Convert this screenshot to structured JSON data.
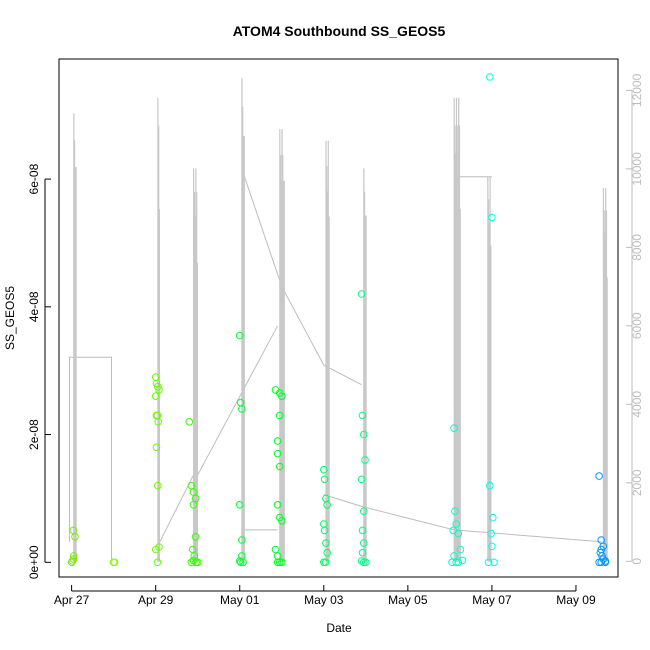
{
  "chart_data": {
    "type": "scatter",
    "title": "ATOM4 Southbound SS_GEOS5",
    "xlabel": "Date",
    "ylabel": "SS_GEOS5",
    "x_ticks": [
      {
        "label": "Apr 27",
        "day": 27
      },
      {
        "label": "Apr 29",
        "day": 29
      },
      {
        "label": "May 01",
        "day": 31
      },
      {
        "label": "May 03",
        "day": 33
      },
      {
        "label": "May 05",
        "day": 35
      },
      {
        "label": "May 07",
        "day": 37
      },
      {
        "label": "May 09",
        "day": 39
      }
    ],
    "xlim_days": [
      26.7,
      40.0
    ],
    "y_ticks": [
      {
        "label": "0e+00",
        "value": 0
      },
      {
        "label": "2e-08",
        "value": 2e-08
      },
      {
        "label": "4e-08",
        "value": 4e-08
      },
      {
        "label": "6e-08",
        "value": 6e-08
      }
    ],
    "ylim": [
      -2.3e-09,
      7.88e-08
    ],
    "right_axis": {
      "ticks": [
        0,
        2000,
        4000,
        6000,
        8000,
        10000,
        12000
      ],
      "ylim": [
        -400,
        12800
      ],
      "color": "#bdbdbd"
    },
    "altitude_profiles": [
      {
        "day": 27.05,
        "max": 11400,
        "spikes": 4
      },
      {
        "day": 29.05,
        "max": 11800,
        "spikes": 3
      },
      {
        "day": 29.9,
        "max": 10000,
        "spikes": 6
      },
      {
        "day": 31.05,
        "max": 12300,
        "spikes": 4
      },
      {
        "day": 31.95,
        "max": 11000,
        "spikes": 7
      },
      {
        "day": 33.05,
        "max": 10700,
        "spikes": 5
      },
      {
        "day": 33.95,
        "max": 10000,
        "spikes": 4
      },
      {
        "day": 36.1,
        "max": 11800,
        "spikes": 9
      },
      {
        "day": 36.9,
        "max": 9800,
        "spikes": 5
      },
      {
        "day": 39.65,
        "max": 9500,
        "spikes": 6
      }
    ],
    "altitude_transits": [
      [
        [
          26.95,
          500
        ],
        [
          26.95,
          5200
        ],
        [
          27.95,
          5200
        ],
        [
          27.95,
          0
        ]
      ],
      [
        [
          29.1,
          500
        ],
        [
          29.9,
          2200
        ]
      ],
      [
        [
          29.9,
          2000
        ],
        [
          31.9,
          6000
        ]
      ],
      [
        [
          31.05,
          10000
        ],
        [
          32.0,
          7000
        ],
        [
          33.0,
          5000
        ],
        [
          33.9,
          4500
        ]
      ],
      [
        [
          33.0,
          1700
        ],
        [
          33.9,
          1400
        ],
        [
          36.1,
          800
        ],
        [
          39.6,
          500
        ]
      ],
      [
        [
          36.1,
          9800
        ],
        [
          37.0,
          9800
        ]
      ],
      [
        [
          31.05,
          800
        ],
        [
          31.9,
          800
        ]
      ]
    ],
    "series": [
      {
        "color": "#76ee00",
        "x": [
          27.0,
          27.02,
          27.05,
          27.05,
          27.08,
          27.04
        ],
        "y": [
          0.0,
          2e-10,
          5e-10,
          1e-09,
          4e-09,
          5e-09
        ]
      },
      {
        "color": "#7fff00",
        "x": [
          28.0,
          28.02
        ],
        "y": [
          0.0,
          0.0
        ]
      },
      {
        "color": "#66ff00",
        "x": [
          29.0,
          29.02,
          29.05,
          29.08,
          29.0,
          29.02,
          29.04,
          29.06,
          29.02,
          29.05,
          29.08,
          29.0,
          29.04
        ],
        "y": [
          2.9e-08,
          2.8e-08,
          2.75e-08,
          2.7e-08,
          2.6e-08,
          2.3e-08,
          2.3e-08,
          2.2e-08,
          1.8e-08,
          1.2e-08,
          2.4e-09,
          2e-09,
          0.0
        ]
      },
      {
        "color": "#33ff00",
        "x": [
          29.8,
          29.85,
          29.9,
          29.95,
          29.9,
          29.95,
          29.88,
          29.92,
          29.96,
          30.0,
          29.85,
          29.9
        ],
        "y": [
          2.2e-08,
          1.2e-08,
          1.1e-08,
          1e-08,
          9e-09,
          4e-09,
          2e-09,
          1e-09,
          0.0,
          0.0,
          0.0,
          3e-10
        ]
      },
      {
        "color": "#00ff33",
        "x": [
          31.0,
          31.02,
          31.05,
          31.0,
          31.05,
          31.05,
          31.02,
          31.08,
          31.0
        ],
        "y": [
          3.55e-08,
          2.5e-08,
          2.4e-08,
          9e-09,
          3.5e-09,
          1e-09,
          0.0,
          0.0,
          2e-10
        ]
      },
      {
        "color": "#00ff22",
        "x": [
          31.85,
          31.95,
          32.0,
          31.95,
          31.9,
          31.9,
          31.95,
          31.9,
          31.95,
          32.0,
          31.85,
          31.9,
          31.95,
          31.9,
          32.0
        ],
        "y": [
          2.7e-08,
          2.65e-08,
          2.6e-08,
          2.3e-08,
          1.9e-08,
          1.7e-08,
          1.5e-08,
          9e-09,
          7e-09,
          6.5e-09,
          2e-09,
          1e-09,
          0.0,
          0.0,
          0.0
        ]
      },
      {
        "color": "#00ff66",
        "x": [
          33.0,
          33.02,
          33.05,
          33.08,
          33.0,
          33.02,
          33.05,
          33.08,
          33.04,
          33.0
        ],
        "y": [
          1.45e-08,
          1.3e-08,
          1e-08,
          9e-09,
          6e-09,
          5e-09,
          3e-09,
          1.5e-09,
          0.0,
          0.0
        ]
      },
      {
        "color": "#00ff88",
        "x": [
          33.9,
          33.92,
          33.95,
          33.98,
          33.9,
          33.95,
          33.92,
          33.95,
          33.92,
          33.95,
          34.0,
          33.9
        ],
        "y": [
          4.2e-08,
          2.3e-08,
          2e-08,
          1.6e-08,
          1.3e-08,
          8e-09,
          5e-09,
          3e-09,
          1.5e-09,
          0.0,
          0.0,
          2e-10
        ]
      },
      {
        "color": "#00ffcc",
        "x": [
          36.1,
          36.12,
          36.15,
          36.08,
          36.2,
          36.25,
          36.1,
          36.15,
          36.05,
          36.2,
          36.3
        ],
        "y": [
          2.1e-08,
          8e-09,
          6e-09,
          5e-09,
          4.5e-09,
          2e-09,
          1e-09,
          0.0,
          0.0,
          0.0,
          3e-10
        ]
      },
      {
        "color": "#00ffee",
        "x": [
          36.95,
          37.0,
          36.95,
          37.02,
          36.98,
          37.0,
          36.92,
          37.05
        ],
        "y": [
          7.6e-08,
          5.4e-08,
          1.2e-08,
          7e-09,
          4.5e-09,
          2.5e-09,
          0.0,
          0.0
        ]
      },
      {
        "color": "#0099ff",
        "x": [
          39.55,
          39.6,
          39.65,
          39.6,
          39.58,
          39.62,
          39.65,
          39.7,
          39.55,
          39.6,
          39.7
        ],
        "y": [
          1.35e-08,
          3.5e-09,
          2.5e-09,
          2e-09,
          1.5e-09,
          1e-09,
          5e-10,
          2e-10,
          0.0,
          0.0,
          0.0
        ]
      }
    ]
  }
}
